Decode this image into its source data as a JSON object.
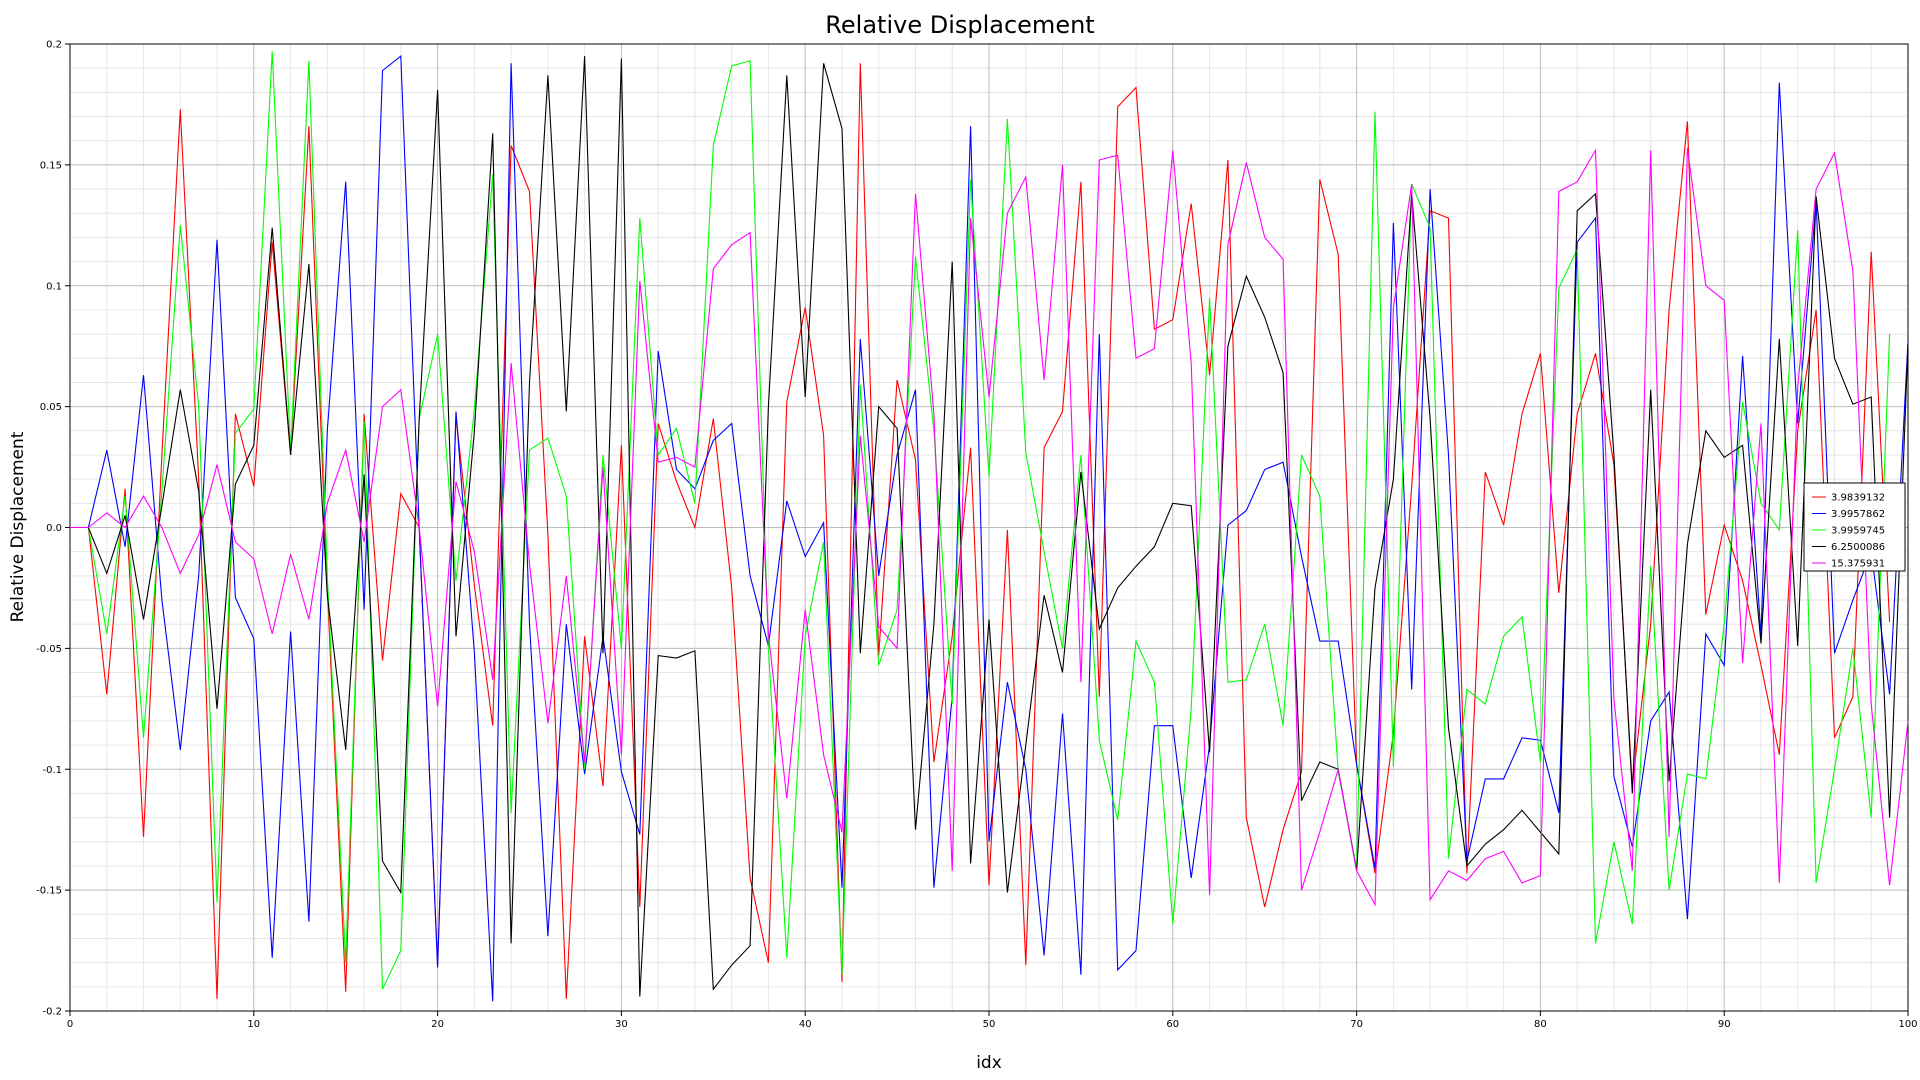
{
  "chart_data": {
    "type": "line",
    "title": "Relative Displacement",
    "xlabel": "idx",
    "ylabel": "Relative Displacement",
    "xlim": [
      0,
      100
    ],
    "ylim": [
      -0.2,
      0.2
    ],
    "x_ticks": [
      0,
      10,
      20,
      30,
      40,
      50,
      60,
      70,
      80,
      90,
      100
    ],
    "y_ticks": [
      -0.2,
      -0.15,
      -0.1,
      -0.05,
      0,
      0.05,
      0.1,
      0.15,
      0.2
    ],
    "x_tick_labels": [
      "0",
      "10",
      "20",
      "30",
      "40",
      "50",
      "60",
      "70",
      "80",
      "90",
      "100"
    ],
    "y_tick_labels": [
      "-0.2",
      "-0.15",
      "-0.1",
      "-0.05",
      "0.0",
      "0.05",
      "0.1",
      "0.15",
      "0.2"
    ],
    "grid": true,
    "legend_position": "right",
    "x_start": 0,
    "series": [
      {
        "name": "3.9839132",
        "color": "#ff0000",
        "values": [
          0,
          0,
          -0.069,
          0.016,
          -0.128,
          0.03,
          0.173,
          0.02,
          -0.195,
          0.047,
          0.017,
          0.118,
          0.03,
          0.166,
          -0.025,
          -0.192,
          0.047,
          -0.055,
          0.014,
          0.0,
          -0.181,
          0.046,
          -0.024,
          -0.082,
          0.158,
          0.139,
          -0.003,
          -0.195,
          -0.045,
          -0.107,
          0.034,
          -0.157,
          0.043,
          0.019,
          0.0,
          0.045,
          -0.025,
          -0.145,
          -0.18,
          0.052,
          0.091,
          0.038,
          -0.188,
          0.192,
          -0.053,
          0.061,
          0.028,
          -0.097,
          -0.045,
          0.033,
          -0.148,
          -0.001,
          -0.181,
          0.033,
          0.048,
          0.143,
          -0.07,
          0.174,
          0.182,
          0.082,
          0.086,
          0.134,
          0.063,
          0.152,
          -0.12,
          -0.157,
          -0.125,
          -0.101,
          0.144,
          0.113,
          -0.098,
          -0.143,
          -0.085,
          0.017,
          0.131,
          0.128,
          -0.143,
          0.023,
          0.001,
          0.047,
          0.072,
          -0.027,
          0.047,
          0.072,
          0.026,
          -0.107,
          -0.04,
          0.09,
          0.168,
          -0.036,
          0.001,
          -0.022,
          -0.057,
          -0.094,
          0.04,
          0.09,
          -0.087,
          -0.07,
          0.114,
          -0.039
        ]
      },
      {
        "name": "3.9957862",
        "color": "#0000ff",
        "values": [
          0,
          0,
          0.032,
          -0.008,
          0.063,
          -0.03,
          -0.092,
          -0.02,
          0.119,
          -0.029,
          -0.046,
          -0.178,
          -0.043,
          -0.163,
          0.04,
          0.143,
          -0.034,
          0.189,
          0.195,
          0.0,
          -0.182,
          0.048,
          -0.052,
          -0.196,
          0.192,
          -0.04,
          -0.169,
          -0.04,
          -0.102,
          -0.045,
          -0.101,
          -0.127,
          0.073,
          0.024,
          0.016,
          0.036,
          0.043,
          -0.02,
          -0.049,
          0.011,
          -0.012,
          0.002,
          -0.149,
          0.078,
          -0.02,
          0.03,
          0.057,
          -0.149,
          -0.07,
          0.166,
          -0.13,
          -0.064,
          -0.1,
          -0.177,
          -0.077,
          -0.185,
          0.08,
          -0.183,
          -0.175,
          -0.082,
          -0.082,
          -0.145,
          -0.09,
          0.001,
          0.007,
          0.024,
          0.027,
          -0.012,
          -0.047,
          -0.047,
          -0.098,
          -0.141,
          0.126,
          -0.067,
          0.14,
          0.03,
          -0.138,
          -0.104,
          -0.104,
          -0.087,
          -0.088,
          -0.118,
          0.118,
          0.128,
          -0.103,
          -0.132,
          -0.08,
          -0.068,
          -0.162,
          -0.044,
          -0.057,
          0.071,
          -0.045,
          0.184,
          0.043,
          0.135,
          -0.052,
          -0.03,
          -0.01,
          -0.069,
          0.077
        ]
      },
      {
        "name": "3.9959745",
        "color": "#00ff00",
        "values": [
          0,
          0,
          -0.044,
          0.013,
          -0.087,
          0.015,
          0.125,
          0.05,
          -0.155,
          0.039,
          0.049,
          0.197,
          0.031,
          0.193,
          -0.02,
          -0.18,
          0.044,
          -0.191,
          -0.175,
          0.045,
          0.08,
          -0.022,
          0.049,
          0.146,
          -0.118,
          0.032,
          0.037,
          0.013,
          -0.1,
          0.03,
          -0.05,
          0.128,
          0.03,
          0.041,
          0.01,
          0.158,
          0.191,
          0.193,
          -0.05,
          -0.178,
          -0.045,
          -0.006,
          -0.185,
          0.059,
          -0.057,
          -0.034,
          0.112,
          0.04,
          -0.073,
          0.144,
          0.021,
          0.169,
          0.031,
          -0.01,
          -0.05,
          0.03,
          -0.088,
          -0.121,
          -0.047,
          -0.064,
          -0.164,
          -0.075,
          0.095,
          -0.064,
          -0.063,
          -0.04,
          -0.082,
          0.03,
          0.013,
          -0.101,
          -0.141,
          0.172,
          -0.099,
          0.142,
          0.124,
          -0.137,
          -0.067,
          -0.073,
          -0.045,
          -0.037,
          -0.097,
          0.099,
          0.115,
          -0.172,
          -0.13,
          -0.164,
          -0.016,
          -0.15,
          -0.102,
          -0.104,
          -0.04,
          0.052,
          0.01,
          -0.001,
          0.123,
          -0.147,
          -0.1,
          -0.05,
          -0.12,
          0.08
        ]
      },
      {
        "name": "6.2500086",
        "color": "#000000",
        "values": [
          0,
          0,
          -0.019,
          0.005,
          -0.038,
          0.009,
          0.057,
          0.015,
          -0.075,
          0.018,
          0.034,
          0.124,
          0.03,
          0.109,
          -0.028,
          -0.092,
          0.022,
          -0.138,
          -0.151,
          0.045,
          0.181,
          -0.045,
          0.04,
          0.163,
          -0.172,
          0.06,
          0.187,
          0.048,
          0.195,
          -0.052,
          0.194,
          -0.194,
          -0.053,
          -0.054,
          -0.051,
          -0.191,
          -0.181,
          -0.173,
          0.05,
          0.187,
          0.054,
          0.192,
          0.165,
          -0.052,
          0.05,
          0.041,
          -0.125,
          -0.04,
          0.11,
          -0.139,
          -0.038,
          -0.151,
          -0.09,
          -0.028,
          -0.06,
          0.023,
          -0.042,
          -0.025,
          -0.016,
          -0.008,
          0.01,
          0.009,
          -0.093,
          0.075,
          0.104,
          0.087,
          0.064,
          -0.113,
          -0.097,
          -0.1,
          -0.142,
          -0.025,
          0.02,
          0.138,
          0.045,
          -0.083,
          -0.14,
          -0.131,
          -0.125,
          -0.117,
          -0.126,
          -0.135,
          0.131,
          0.138,
          0.03,
          -0.11,
          0.057,
          -0.105,
          -0.007,
          0.04,
          0.029,
          0.034,
          -0.048,
          0.078,
          -0.049,
          0.137,
          0.07,
          0.051,
          0.054,
          -0.12,
          0.076
        ]
      },
      {
        "name": "15.375931",
        "color": "#ff00ff",
        "values": [
          0,
          0,
          0.006,
          0.0,
          0.013,
          0.0,
          -0.019,
          -0.003,
          0.026,
          -0.006,
          -0.013,
          -0.044,
          -0.011,
          -0.038,
          0.01,
          0.032,
          -0.006,
          0.05,
          0.057,
          0.0,
          -0.074,
          0.019,
          -0.01,
          -0.063,
          0.068,
          -0.015,
          -0.081,
          -0.02,
          -0.097,
          0.025,
          -0.094,
          0.102,
          0.027,
          0.029,
          0.025,
          0.107,
          0.117,
          0.122,
          -0.044,
          -0.112,
          -0.034,
          -0.094,
          -0.126,
          0.038,
          -0.041,
          -0.05,
          0.138,
          0.047,
          -0.142,
          0.128,
          0.054,
          0.13,
          0.145,
          0.061,
          0.15,
          -0.064,
          0.152,
          0.154,
          0.07,
          0.074,
          0.156,
          0.068,
          -0.152,
          0.117,
          0.151,
          0.12,
          0.111,
          -0.15,
          -0.126,
          -0.1,
          -0.142,
          -0.156,
          0.091,
          0.142,
          -0.154,
          -0.142,
          -0.146,
          -0.137,
          -0.134,
          -0.147,
          -0.144,
          0.139,
          0.143,
          0.156,
          -0.071,
          -0.142,
          0.156,
          -0.128,
          0.157,
          0.1,
          0.094,
          -0.056,
          0.043,
          -0.147,
          0.058,
          0.14,
          0.155,
          0.106,
          -0.073,
          -0.148,
          -0.08
        ]
      }
    ]
  }
}
